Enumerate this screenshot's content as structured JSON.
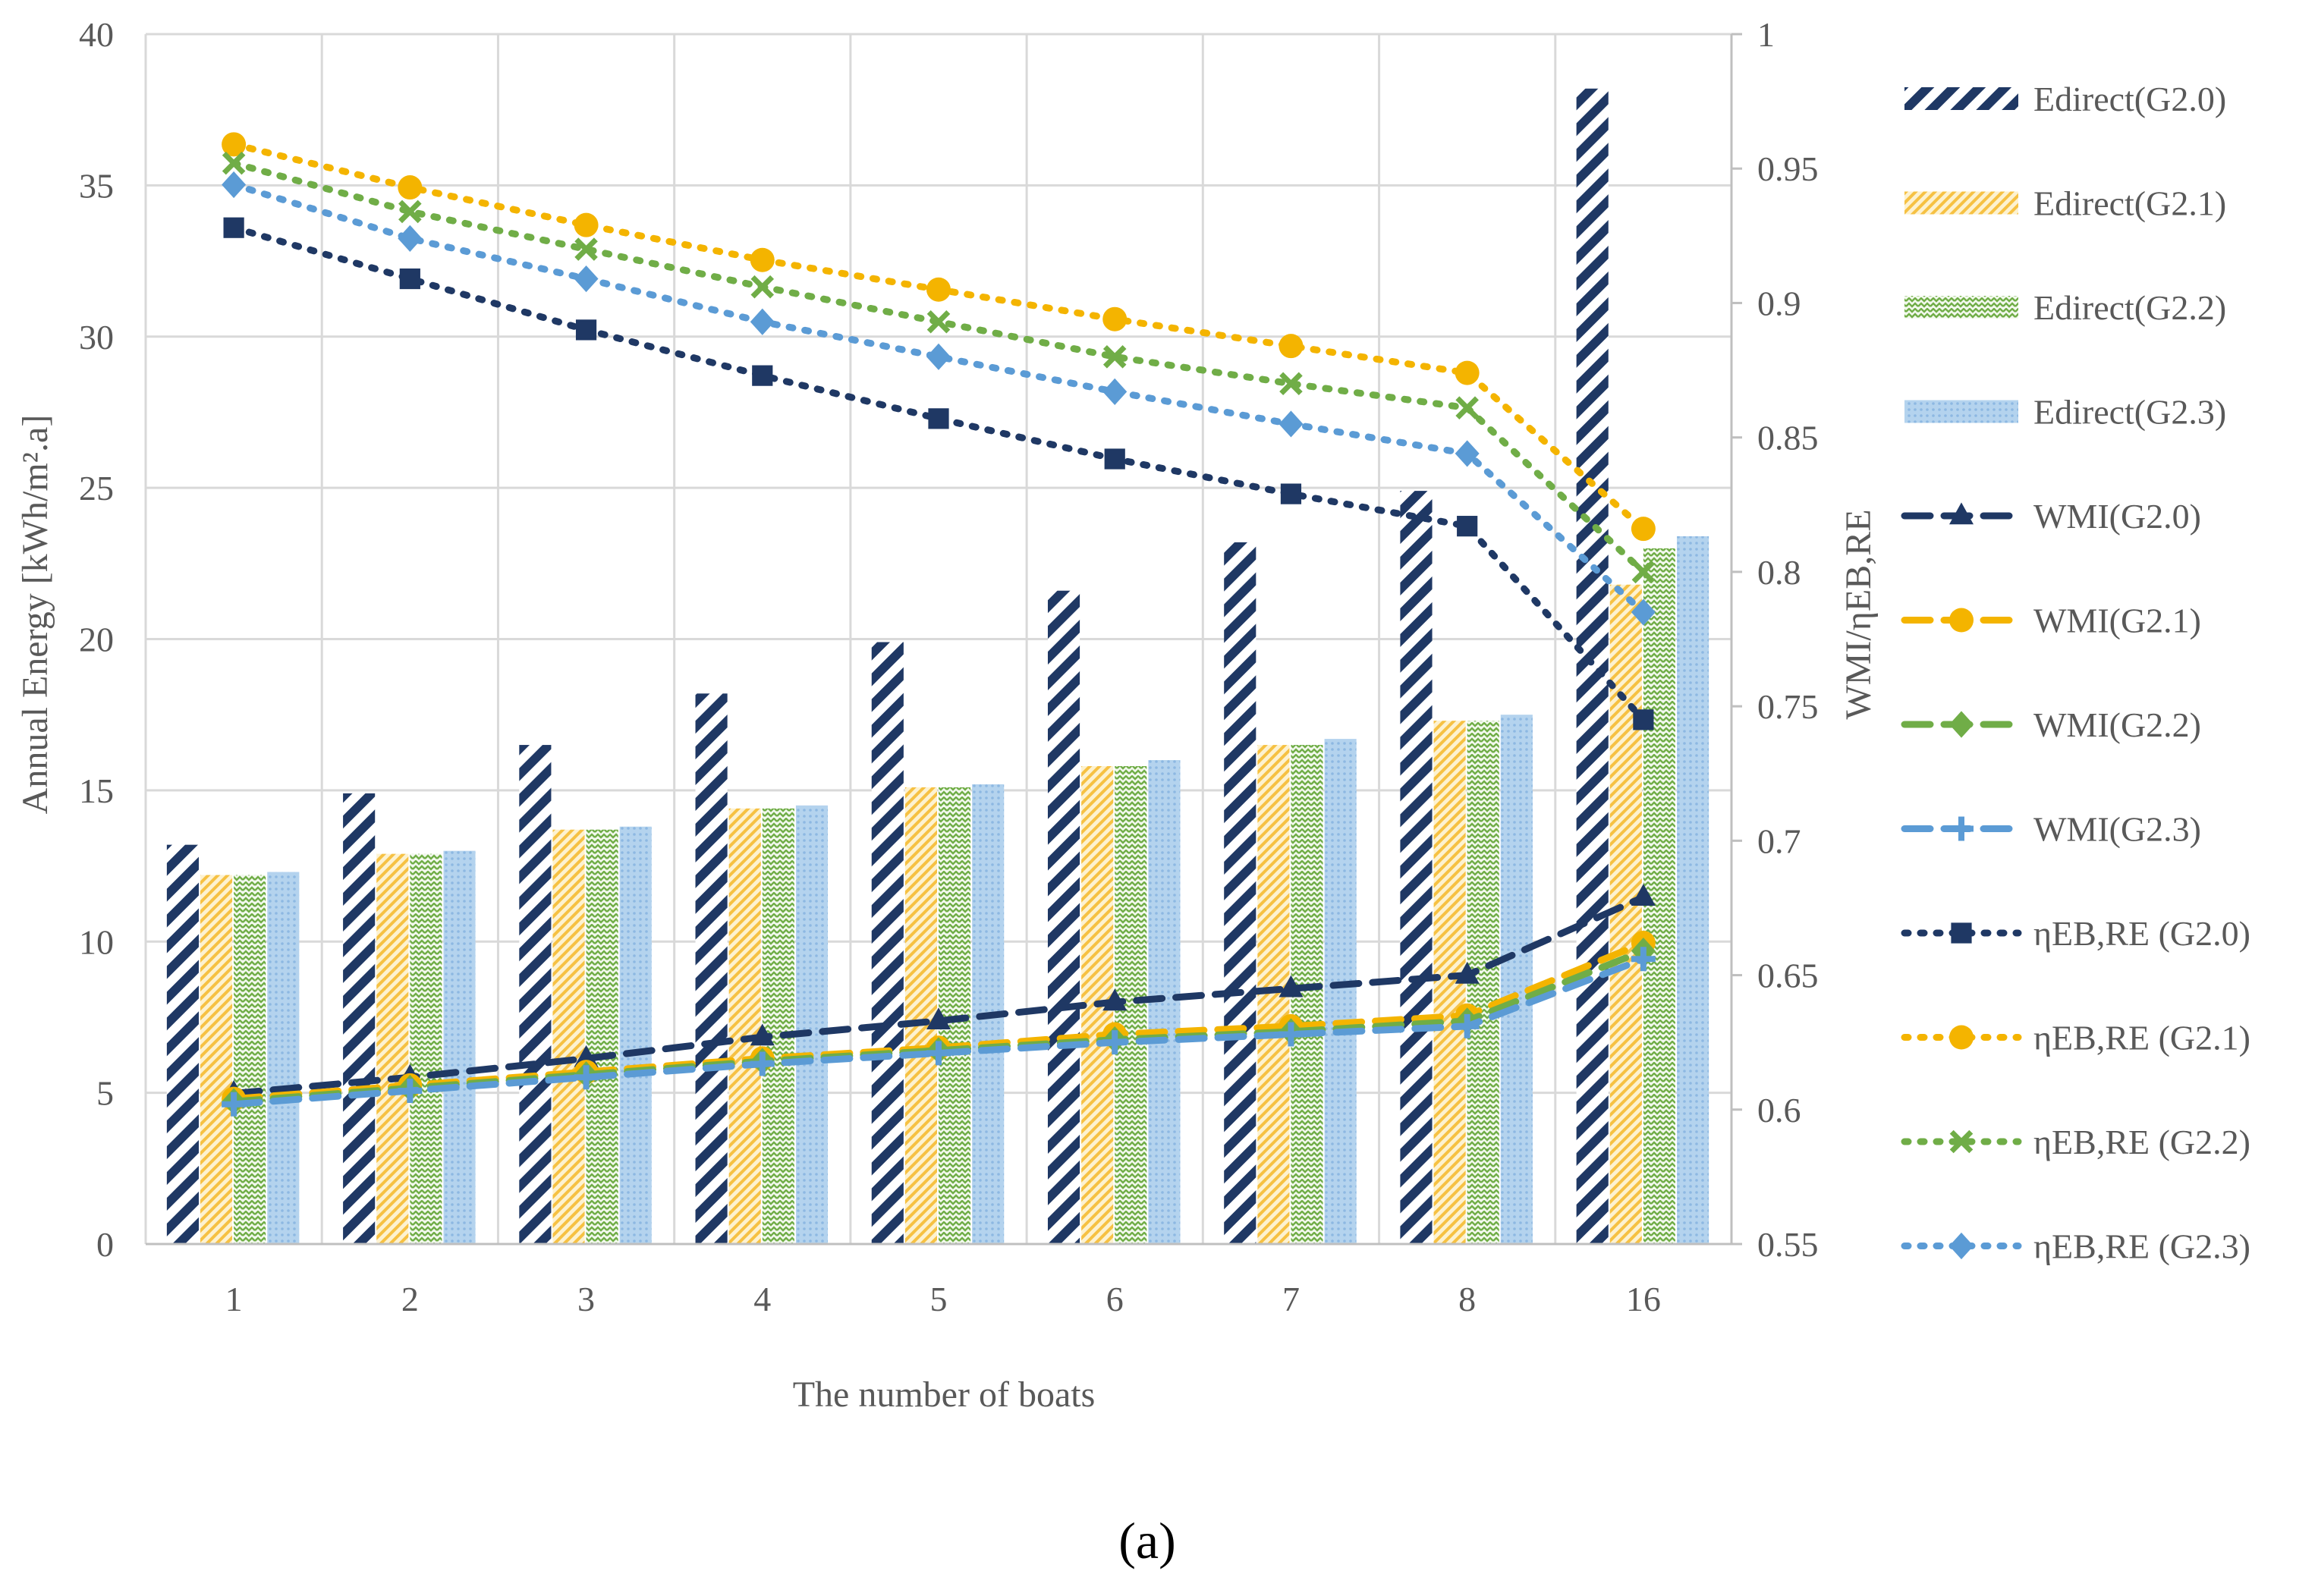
{
  "chart_data": {
    "type": "bar",
    "categories": [
      "1",
      "2",
      "3",
      "4",
      "5",
      "6",
      "7",
      "8",
      "16"
    ],
    "xlabel": "The number of boats",
    "ylabel": "Annual Energy [kWh/m².a]",
    "y2label": "WMI/ηEB,RE",
    "ylim": [
      0,
      40
    ],
    "yticks": [
      "0",
      "5",
      "10",
      "15",
      "20",
      "25",
      "30",
      "35",
      "40"
    ],
    "y2lim": [
      0.55,
      1
    ],
    "y2ticks": [
      "0.55",
      "0.6",
      "0.65",
      "0.7",
      "0.75",
      "0.8",
      "0.85",
      "0.9",
      "0.95",
      "1"
    ],
    "grid": true,
    "legend_position": "right",
    "caption": "(a)",
    "bar_series": [
      {
        "name": "Edirect(G2.0)",
        "color": "#1f3864",
        "pattern": "diagonal-stripes",
        "values": [
          13.2,
          14.9,
          16.5,
          18.2,
          19.9,
          21.6,
          23.2,
          24.9,
          38.2
        ]
      },
      {
        "name": "Edirect(G2.1)",
        "color": "#f6c143",
        "pattern": "fine-diagonal",
        "values": [
          12.2,
          12.9,
          13.7,
          14.4,
          15.1,
          15.8,
          16.5,
          17.3,
          21.8
        ]
      },
      {
        "name": "Edirect(G2.2)",
        "color": "#70ad47",
        "pattern": "zigzag",
        "values": [
          12.2,
          12.9,
          13.7,
          14.4,
          15.1,
          15.8,
          16.5,
          17.3,
          23.0
        ]
      },
      {
        "name": "Edirect(G2.3)",
        "color": "#9dc3e6",
        "pattern": "dotted",
        "values": [
          12.3,
          13.0,
          13.8,
          14.5,
          15.2,
          16.0,
          16.7,
          17.5,
          23.4
        ]
      }
    ],
    "line_series": [
      {
        "name": "WMI(G2.0)",
        "color": "#1f3864",
        "dash": "long-dash",
        "marker": "triangle",
        "values": [
          0.606,
          0.612,
          0.619,
          0.627,
          0.633,
          0.64,
          0.645,
          0.65,
          0.679
        ]
      },
      {
        "name": "WMI(G2.1)",
        "color": "#f4b400",
        "dash": "long-dash",
        "marker": "circle",
        "values": [
          0.604,
          0.609,
          0.614,
          0.619,
          0.623,
          0.628,
          0.631,
          0.635,
          0.662
        ]
      },
      {
        "name": "WMI(G2.2)",
        "color": "#70ad47",
        "dash": "long-dash",
        "marker": "diamond",
        "values": [
          0.603,
          0.608,
          0.613,
          0.618,
          0.622,
          0.626,
          0.629,
          0.633,
          0.659
        ]
      },
      {
        "name": "WMI(G2.3)",
        "color": "#5b9bd5",
        "dash": "long-dash",
        "marker": "plus",
        "values": [
          0.602,
          0.607,
          0.612,
          0.617,
          0.621,
          0.625,
          0.628,
          0.631,
          0.656
        ]
      },
      {
        "name": "ηEB,RE (G2.0)",
        "color": "#1f3864",
        "dash": "dotted",
        "marker": "square",
        "values": [
          0.928,
          0.909,
          0.89,
          0.873,
          0.857,
          0.842,
          0.829,
          0.817,
          0.745
        ]
      },
      {
        "name": "ηEB,RE (G2.1)",
        "color": "#f4b400",
        "dash": "dotted",
        "marker": "circle",
        "values": [
          0.959,
          0.943,
          0.929,
          0.916,
          0.905,
          0.894,
          0.884,
          0.874,
          0.816
        ]
      },
      {
        "name": "ηEB,RE (G2.2)",
        "color": "#70ad47",
        "dash": "dotted",
        "marker": "x",
        "values": [
          0.952,
          0.934,
          0.92,
          0.906,
          0.893,
          0.88,
          0.87,
          0.861,
          0.8
        ]
      },
      {
        "name": "ηEB,RE (G2.3)",
        "color": "#5b9bd5",
        "dash": "dotted",
        "marker": "diamond",
        "values": [
          0.944,
          0.924,
          0.909,
          0.893,
          0.88,
          0.867,
          0.855,
          0.844,
          0.785
        ]
      }
    ]
  }
}
